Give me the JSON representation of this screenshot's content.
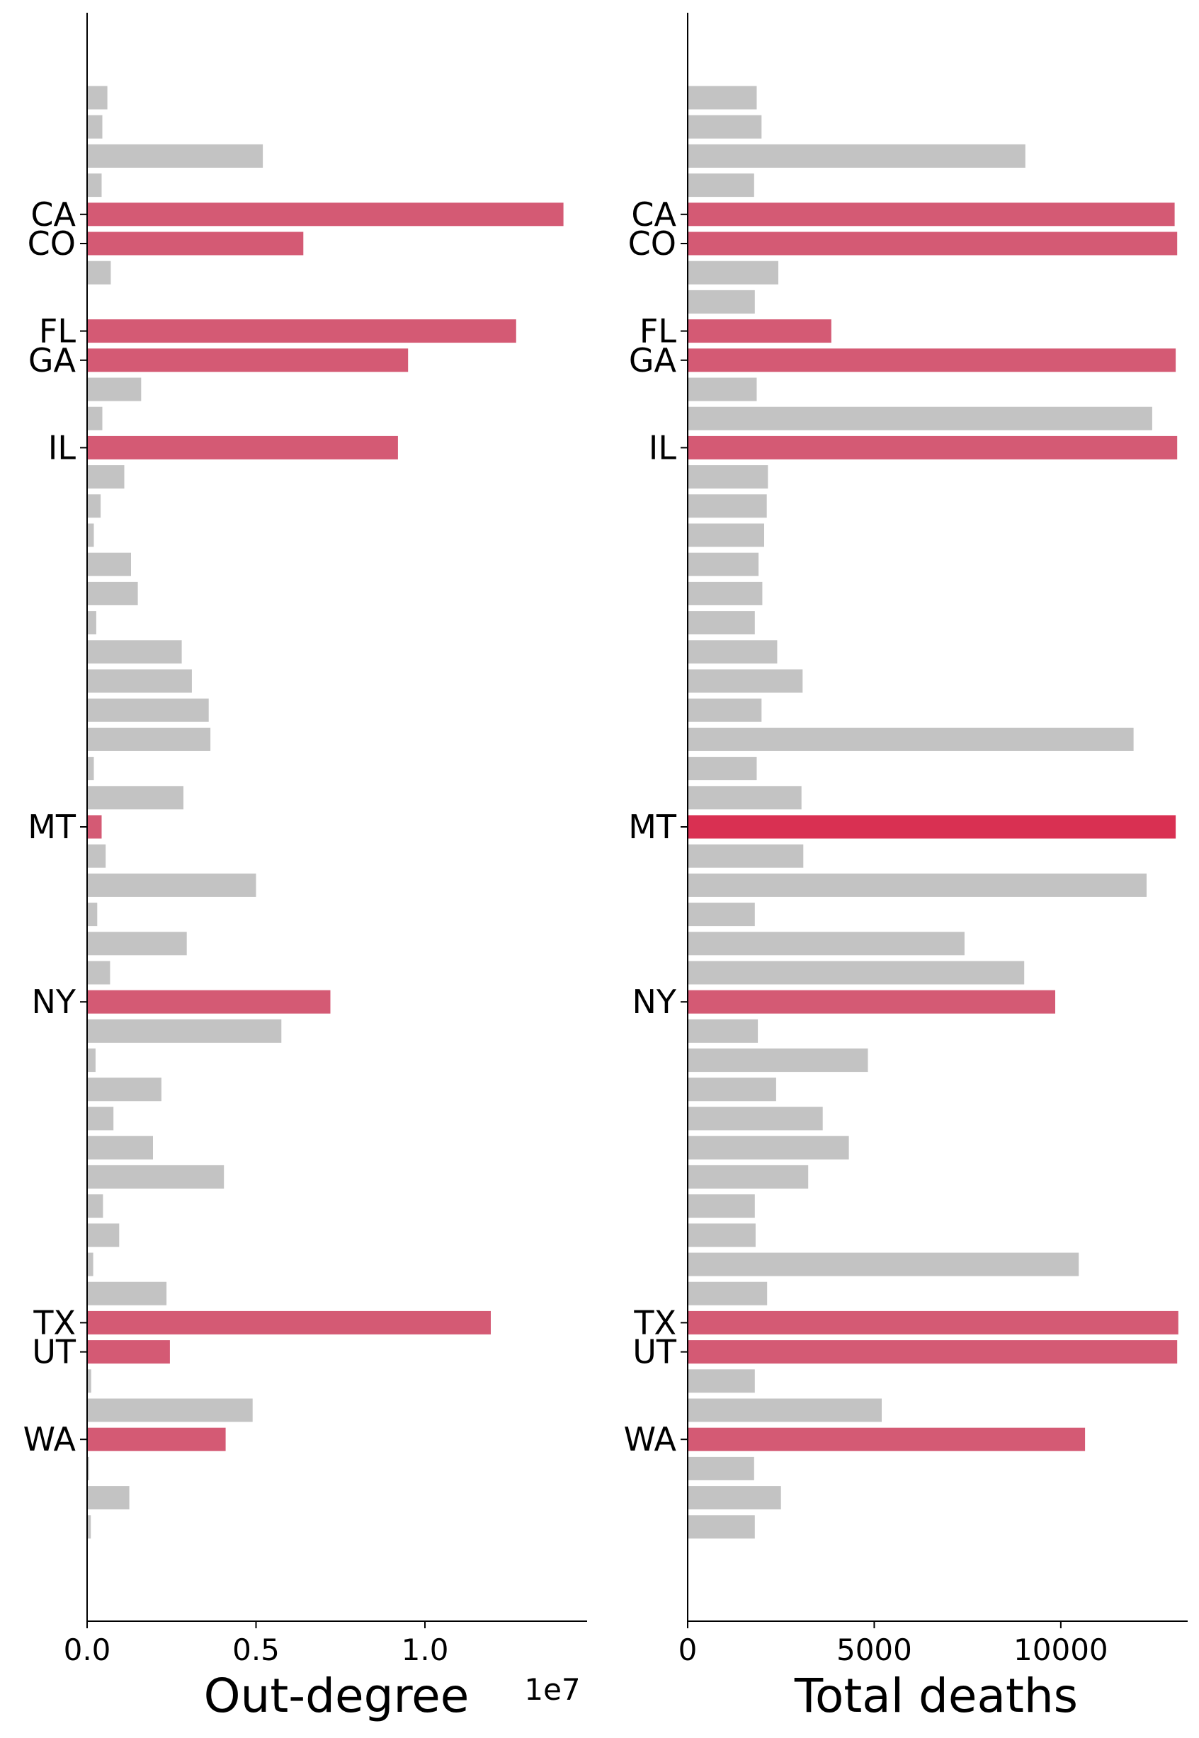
{
  "colors": {
    "highlight": "#d45a74",
    "highlight_strong": "#d93052",
    "background_bar": "#c3c3c3",
    "axis": "#000000"
  },
  "chart_data": [
    {
      "type": "bar",
      "orientation": "horizontal",
      "xlabel": "Out-degree",
      "offset_text": "1e7",
      "xlim": [
        0,
        14800000
      ],
      "xticks": [
        0,
        5000000,
        10000000
      ],
      "xtick_labels": [
        "0.0",
        "0.5",
        "1.0"
      ],
      "grid": false,
      "bars": [
        {
          "label": "",
          "value": 600000,
          "highlight": false
        },
        {
          "label": "",
          "value": 450000,
          "highlight": false
        },
        {
          "label": "",
          "value": 5200000,
          "highlight": false
        },
        {
          "label": "",
          "value": 430000,
          "highlight": false
        },
        {
          "label": "CA",
          "value": 14100000,
          "highlight": true
        },
        {
          "label": "CO",
          "value": 6400000,
          "highlight": true
        },
        {
          "label": "",
          "value": 700000,
          "highlight": false
        },
        {
          "label": "",
          "value": 0,
          "highlight": false
        },
        {
          "label": "FL",
          "value": 12700000,
          "highlight": true
        },
        {
          "label": "GA",
          "value": 9500000,
          "highlight": true
        },
        {
          "label": "",
          "value": 1600000,
          "highlight": false
        },
        {
          "label": "",
          "value": 450000,
          "highlight": false
        },
        {
          "label": "IL",
          "value": 9200000,
          "highlight": true
        },
        {
          "label": "",
          "value": 1100000,
          "highlight": false
        },
        {
          "label": "",
          "value": 400000,
          "highlight": false
        },
        {
          "label": "",
          "value": 200000,
          "highlight": false
        },
        {
          "label": "",
          "value": 1300000,
          "highlight": false
        },
        {
          "label": "",
          "value": 1500000,
          "highlight": false
        },
        {
          "label": "",
          "value": 270000,
          "highlight": false
        },
        {
          "label": "",
          "value": 2800000,
          "highlight": false
        },
        {
          "label": "",
          "value": 3100000,
          "highlight": false
        },
        {
          "label": "",
          "value": 3600000,
          "highlight": false
        },
        {
          "label": "",
          "value": 3650000,
          "highlight": false
        },
        {
          "label": "",
          "value": 200000,
          "highlight": false
        },
        {
          "label": "",
          "value": 2850000,
          "highlight": false
        },
        {
          "label": "MT",
          "value": 430000,
          "highlight": true
        },
        {
          "label": "",
          "value": 550000,
          "highlight": false
        },
        {
          "label": "",
          "value": 5000000,
          "highlight": false
        },
        {
          "label": "",
          "value": 300000,
          "highlight": false
        },
        {
          "label": "",
          "value": 2950000,
          "highlight": false
        },
        {
          "label": "",
          "value": 680000,
          "highlight": false
        },
        {
          "label": "NY",
          "value": 7200000,
          "highlight": true
        },
        {
          "label": "",
          "value": 5750000,
          "highlight": false
        },
        {
          "label": "",
          "value": 250000,
          "highlight": false
        },
        {
          "label": "",
          "value": 2200000,
          "highlight": false
        },
        {
          "label": "",
          "value": 780000,
          "highlight": false
        },
        {
          "label": "",
          "value": 1950000,
          "highlight": false
        },
        {
          "label": "",
          "value": 4050000,
          "highlight": false
        },
        {
          "label": "",
          "value": 470000,
          "highlight": false
        },
        {
          "label": "",
          "value": 950000,
          "highlight": false
        },
        {
          "label": "",
          "value": 180000,
          "highlight": false
        },
        {
          "label": "",
          "value": 2350000,
          "highlight": false
        },
        {
          "label": "TX",
          "value": 11950000,
          "highlight": true
        },
        {
          "label": "UT",
          "value": 2450000,
          "highlight": true
        },
        {
          "label": "",
          "value": 120000,
          "highlight": false
        },
        {
          "label": "",
          "value": 4900000,
          "highlight": false
        },
        {
          "label": "WA",
          "value": 4100000,
          "highlight": true
        },
        {
          "label": "",
          "value": 60000,
          "highlight": false
        },
        {
          "label": "",
          "value": 1250000,
          "highlight": false
        },
        {
          "label": "",
          "value": 110000,
          "highlight": false
        }
      ]
    },
    {
      "type": "bar",
      "orientation": "horizontal",
      "xlabel": "Total deaths",
      "xlim": [
        0,
        13400
      ],
      "xticks": [
        0,
        5000,
        10000
      ],
      "xtick_labels": [
        "0",
        "5000",
        "10000"
      ],
      "grid": false,
      "bars": [
        {
          "label": "",
          "value": 1850,
          "highlight": false
        },
        {
          "label": "",
          "value": 1980,
          "highlight": false
        },
        {
          "label": "",
          "value": 9050,
          "highlight": false
        },
        {
          "label": "",
          "value": 1780,
          "highlight": false
        },
        {
          "label": "CA",
          "value": 13050,
          "highlight": true
        },
        {
          "label": "CO",
          "value": 13120,
          "highlight": true
        },
        {
          "label": "",
          "value": 2430,
          "highlight": false
        },
        {
          "label": "",
          "value": 1800,
          "highlight": false
        },
        {
          "label": "FL",
          "value": 3850,
          "highlight": true
        },
        {
          "label": "GA",
          "value": 13080,
          "highlight": true
        },
        {
          "label": "",
          "value": 1850,
          "highlight": false
        },
        {
          "label": "",
          "value": 12450,
          "highlight": false
        },
        {
          "label": "IL",
          "value": 13120,
          "highlight": true
        },
        {
          "label": "",
          "value": 2150,
          "highlight": false
        },
        {
          "label": "",
          "value": 2120,
          "highlight": false
        },
        {
          "label": "",
          "value": 2050,
          "highlight": false
        },
        {
          "label": "",
          "value": 1900,
          "highlight": false
        },
        {
          "label": "",
          "value": 2000,
          "highlight": false
        },
        {
          "label": "",
          "value": 1800,
          "highlight": false
        },
        {
          "label": "",
          "value": 2400,
          "highlight": false
        },
        {
          "label": "",
          "value": 3080,
          "highlight": false
        },
        {
          "label": "",
          "value": 1980,
          "highlight": false
        },
        {
          "label": "",
          "value": 11950,
          "highlight": false
        },
        {
          "label": "",
          "value": 1850,
          "highlight": false
        },
        {
          "label": "",
          "value": 3050,
          "highlight": false
        },
        {
          "label": "MT",
          "value": 13080,
          "highlight": true,
          "emphasis": true
        },
        {
          "label": "",
          "value": 3100,
          "highlight": false
        },
        {
          "label": "",
          "value": 12300,
          "highlight": false
        },
        {
          "label": "",
          "value": 1800,
          "highlight": false
        },
        {
          "label": "",
          "value": 7420,
          "highlight": false
        },
        {
          "label": "",
          "value": 9020,
          "highlight": false
        },
        {
          "label": "NY",
          "value": 9850,
          "highlight": true
        },
        {
          "label": "",
          "value": 1880,
          "highlight": false
        },
        {
          "label": "",
          "value": 4830,
          "highlight": false
        },
        {
          "label": "",
          "value": 2370,
          "highlight": false
        },
        {
          "label": "",
          "value": 3620,
          "highlight": false
        },
        {
          "label": "",
          "value": 4320,
          "highlight": false
        },
        {
          "label": "",
          "value": 3230,
          "highlight": false
        },
        {
          "label": "",
          "value": 1800,
          "highlight": false
        },
        {
          "label": "",
          "value": 1820,
          "highlight": false
        },
        {
          "label": "",
          "value": 10480,
          "highlight": false
        },
        {
          "label": "",
          "value": 2130,
          "highlight": false
        },
        {
          "label": "TX",
          "value": 13150,
          "highlight": true
        },
        {
          "label": "UT",
          "value": 13120,
          "highlight": true
        },
        {
          "label": "",
          "value": 1800,
          "highlight": false
        },
        {
          "label": "",
          "value": 5200,
          "highlight": false
        },
        {
          "label": "WA",
          "value": 10650,
          "highlight": true
        },
        {
          "label": "",
          "value": 1780,
          "highlight": false
        },
        {
          "label": "",
          "value": 2500,
          "highlight": false
        },
        {
          "label": "",
          "value": 1800,
          "highlight": false
        }
      ]
    }
  ]
}
